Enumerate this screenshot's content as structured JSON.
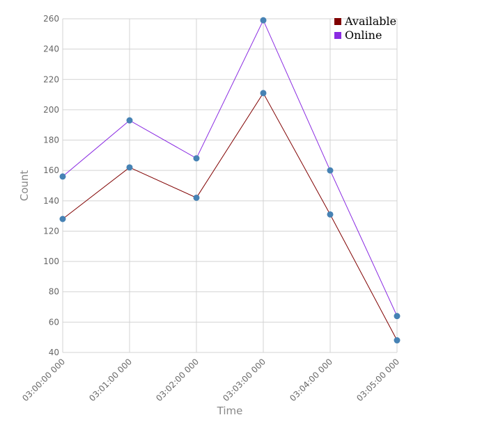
{
  "chart_data": {
    "type": "line",
    "title": "",
    "xlabel": "Time",
    "ylabel": "Count",
    "categories": [
      "03:00:00 000",
      "03:01:00 000",
      "03:02:00 000",
      "03:03:00 000",
      "03:04:00 000",
      "03:05:00 000"
    ],
    "series": [
      {
        "name": "Available",
        "color": "#800000",
        "values": [
          128,
          162,
          142,
          211,
          131,
          48
        ]
      },
      {
        "name": "Online",
        "color": "#8a2be2",
        "values": [
          156,
          193,
          168,
          259,
          160,
          64
        ]
      }
    ],
    "ylim": [
      40,
      260
    ],
    "yticks": [
      40,
      60,
      80,
      100,
      120,
      140,
      160,
      180,
      200,
      220,
      240,
      260
    ],
    "point_color": "#4682b4",
    "grid": true,
    "legend_position": "top-right"
  }
}
